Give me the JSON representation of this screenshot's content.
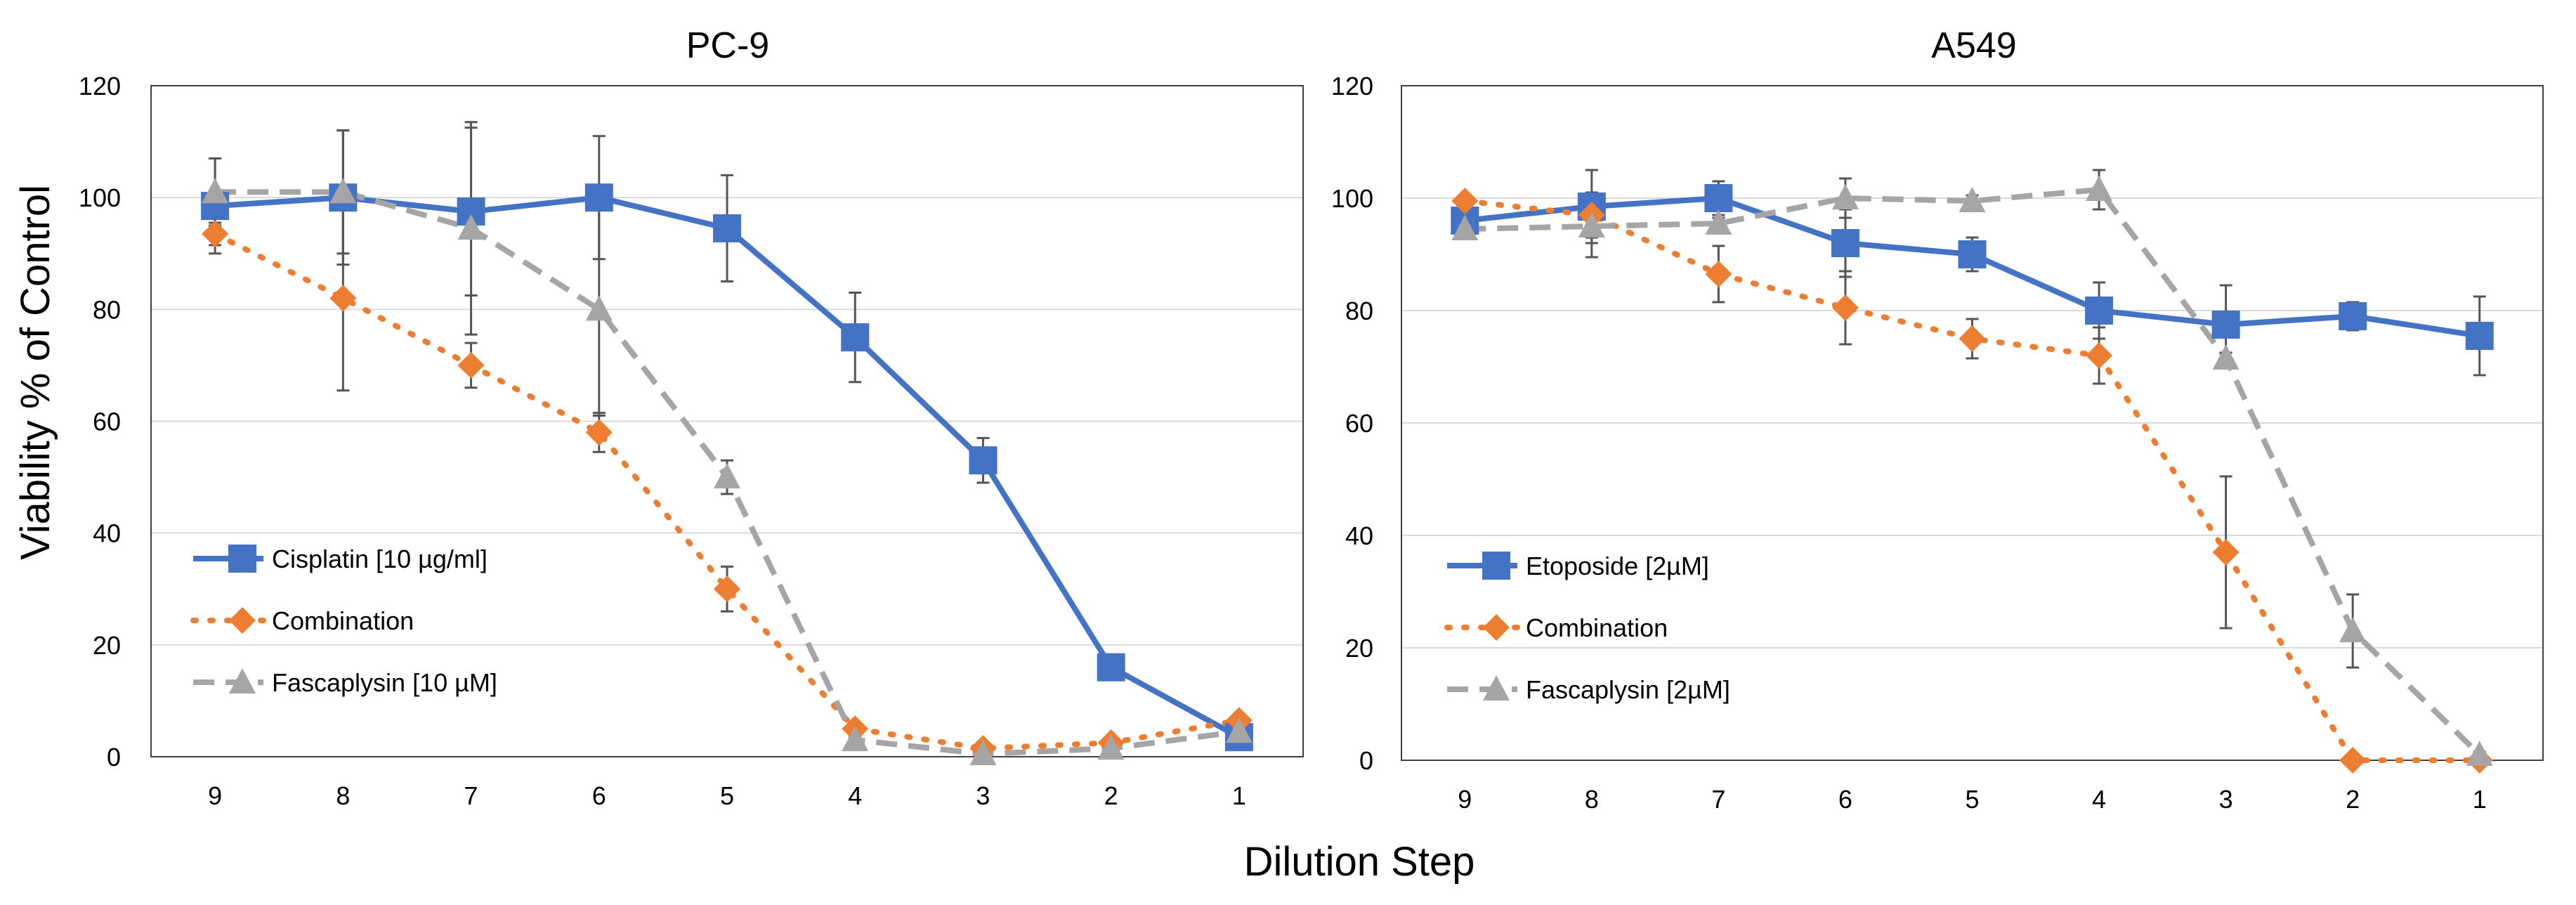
{
  "figure": {
    "ylabel": "Viability % of Control",
    "xlabel": "Dilution Step"
  },
  "chart_data": [
    {
      "type": "line",
      "title": "PC-9",
      "categories": [
        "9",
        "8",
        "7",
        "6",
        "5",
        "4",
        "3",
        "2",
        "1"
      ],
      "xlabel": "Dilution Step",
      "ylabel": "Viability % of Control",
      "ylim": [
        0,
        120
      ],
      "yticks": [
        0,
        20,
        40,
        60,
        80,
        100,
        120
      ],
      "grid": true,
      "legend_position": "bottom-left",
      "series": [
        {
          "name": "Cisplatin [10 µg/ml]",
          "color": "#4472C4",
          "style": "solid",
          "marker": "square",
          "values": [
            98.5,
            100,
            97.5,
            100,
            94.5,
            75,
            53,
            16,
            3.5
          ],
          "errors": [
            8.5,
            12,
            15,
            11,
            9.5,
            8,
            4,
            0.5,
            1
          ]
        },
        {
          "name": "Combination",
          "color": "#ED7D31",
          "style": "dotted",
          "marker": "diamond",
          "values": [
            93.5,
            82,
            70,
            58,
            30,
            5,
            1.5,
            2.5,
            6.5
          ],
          "errors": [
            2,
            16.5,
            4,
            3.5,
            4,
            1,
            0.5,
            0.5,
            0.5
          ]
        },
        {
          "name": "Fascaplysin [10 µM]",
          "color": "#A5A5A5",
          "style": "dashed",
          "marker": "triangle",
          "values": [
            101,
            101,
            94.5,
            80,
            50,
            3,
            0.5,
            1.5,
            4.5
          ],
          "errors": [
            6,
            11,
            19,
            19,
            3,
            0.5,
            0.5,
            0.5,
            0.5
          ]
        }
      ]
    },
    {
      "type": "line",
      "title": "A549",
      "categories": [
        "9",
        "8",
        "7",
        "6",
        "5",
        "4",
        "3",
        "2",
        "1"
      ],
      "xlabel": "Dilution Step",
      "ylabel": "",
      "ylim": [
        0,
        120
      ],
      "yticks": [
        0,
        20,
        40,
        60,
        80,
        100,
        120
      ],
      "grid": true,
      "legend_position": "bottom-left",
      "series": [
        {
          "name": "Etoposide [2µM]",
          "color": "#4472C4",
          "style": "solid",
          "marker": "square",
          "values": [
            96,
            98.5,
            100,
            92,
            90,
            80,
            77.5,
            79,
            75.5
          ],
          "errors": [
            2,
            6.5,
            3,
            6,
            3,
            5,
            7,
            2.5,
            7
          ]
        },
        {
          "name": "Combination",
          "color": "#ED7D31",
          "style": "dotted",
          "marker": "diamond",
          "values": [
            99.5,
            97,
            86.5,
            80.5,
            75,
            72,
            37,
            0,
            0
          ],
          "errors": [
            1,
            4,
            5,
            6.5,
            3.5,
            5,
            13.5,
            0.3,
            0.3
          ]
        },
        {
          "name": "Fascaplysin [2µM]",
          "color": "#A5A5A5",
          "style": "dashed",
          "marker": "triangle",
          "values": [
            94.5,
            95,
            95.5,
            100,
            99.5,
            101.5,
            71.5,
            23,
            1
          ],
          "errors": [
            1,
            5.5,
            1,
            3.5,
            1,
            3.5,
            1,
            6.5,
            0.5
          ]
        }
      ]
    }
  ]
}
